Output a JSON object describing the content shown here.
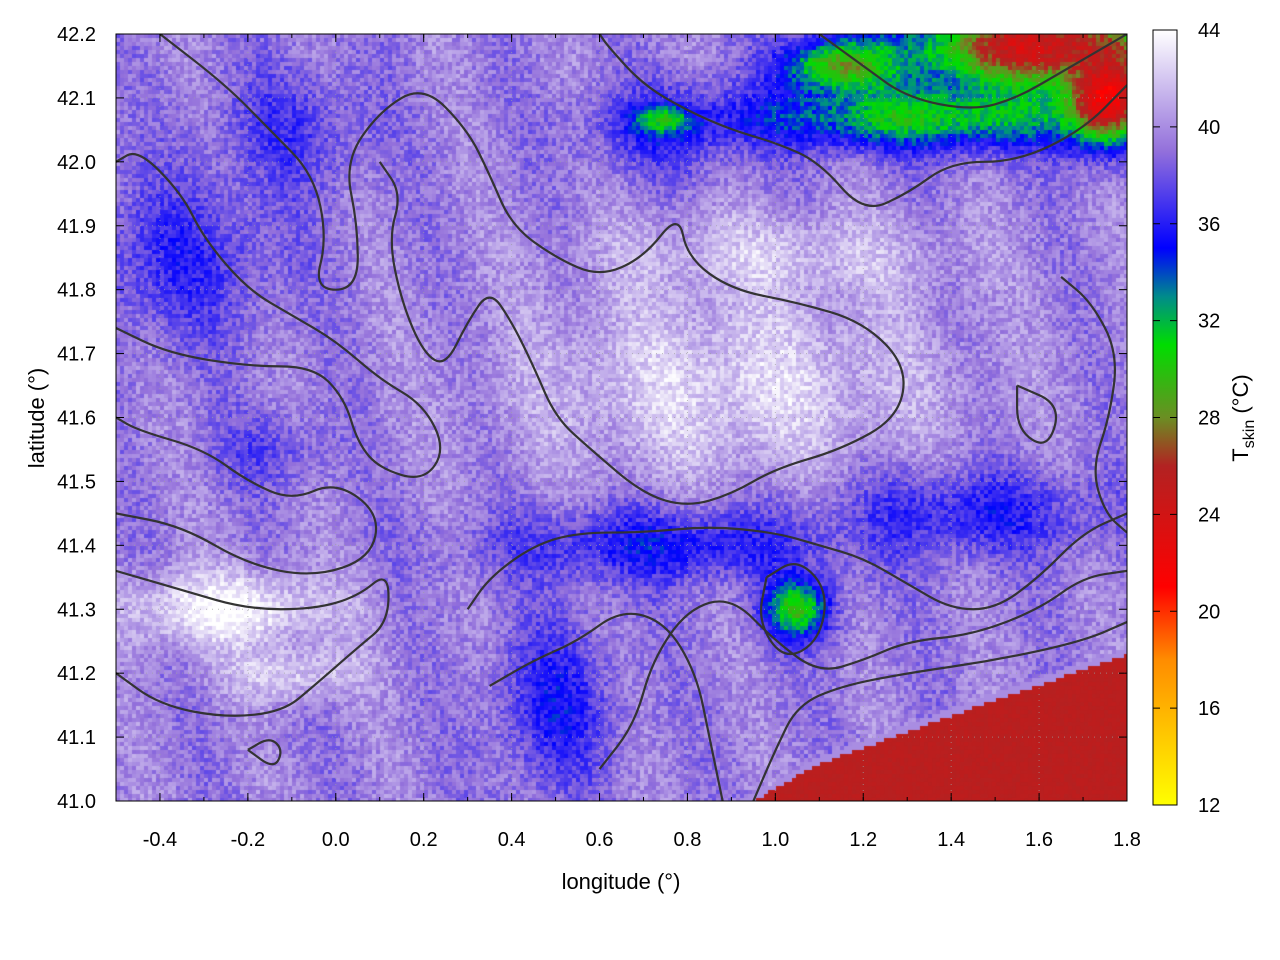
{
  "chart_data": {
    "type": "heatmap",
    "title": "",
    "xlabel": "longitude (°)",
    "ylabel": "latitude (°)",
    "colorbar": {
      "label_main": "T",
      "label_sub": "skin",
      "label_unit": " (°C)",
      "range": [
        12,
        44
      ],
      "ticks": [
        12,
        16,
        20,
        24,
        28,
        32,
        36,
        40,
        44
      ],
      "stops": [
        {
          "v": 12,
          "c": "#ffff00"
        },
        {
          "v": 18,
          "c": "#ff8c00"
        },
        {
          "v": 21,
          "c": "#ff0000"
        },
        {
          "v": 26,
          "c": "#b22222"
        },
        {
          "v": 28,
          "c": "#6b8e23"
        },
        {
          "v": 31,
          "c": "#00dd00"
        },
        {
          "v": 33,
          "c": "#008b8b"
        },
        {
          "v": 35,
          "c": "#0000ff"
        },
        {
          "v": 39,
          "c": "#9370db"
        },
        {
          "v": 44,
          "c": "#ffffff"
        }
      ]
    },
    "xlim": [
      -0.5,
      1.8
    ],
    "ylim": [
      41.0,
      42.2
    ],
    "x_ticks": [
      -0.4,
      -0.2,
      0.0,
      0.2,
      0.4,
      0.6,
      0.8,
      1.0,
      1.2,
      1.4,
      1.6,
      1.8
    ],
    "x_tick_labels": [
      "-0.4",
      "-0.2",
      "0.0",
      "0.2",
      "0.4",
      "0.6",
      "0.8",
      "1.0",
      "1.2",
      "1.4",
      "1.6",
      "1.8"
    ],
    "y_ticks": [
      41.0,
      41.1,
      41.2,
      41.3,
      41.4,
      41.5,
      41.6,
      41.7,
      41.8,
      41.9,
      42.0,
      42.1,
      42.2
    ],
    "y_tick_labels": [
      "41.0",
      "41.1",
      "41.2",
      "41.3",
      "41.4",
      "41.5",
      "41.6",
      "41.7",
      "41.8",
      "41.9",
      "42.0",
      "42.1",
      "42.2"
    ],
    "grid": true,
    "field_features": [
      {
        "name": "background",
        "type": "base",
        "value": 39.5
      },
      {
        "name": "western-blue-band",
        "type": "blob",
        "x": -0.35,
        "y": 41.85,
        "rx": 0.25,
        "ry": 0.15,
        "value": 36.5
      },
      {
        "name": "northwest-blue",
        "type": "blob",
        "x": -0.1,
        "y": 42.05,
        "rx": 0.2,
        "ry": 0.12,
        "value": 37.0
      },
      {
        "name": "west-blue-patch",
        "type": "blob",
        "x": -0.15,
        "y": 41.55,
        "rx": 0.15,
        "ry": 0.07,
        "value": 37.5
      },
      {
        "name": "central-hot-band",
        "type": "blob",
        "x": 0.9,
        "y": 41.65,
        "rx": 0.55,
        "ry": 0.18,
        "value": 42.5
      },
      {
        "name": "north-hot-strip",
        "type": "blob",
        "x": 1.0,
        "y": 41.85,
        "rx": 0.45,
        "ry": 0.08,
        "value": 42.0
      },
      {
        "name": "western-hot-lowland",
        "type": "blob",
        "x": -0.25,
        "y": 41.3,
        "rx": 0.28,
        "ry": 0.07,
        "value": 44.0
      },
      {
        "name": "west-hot-south",
        "type": "blob",
        "x": -0.1,
        "y": 41.2,
        "rx": 0.18,
        "ry": 0.05,
        "value": 42.5
      },
      {
        "name": "southern-blue-belt",
        "type": "blob",
        "x": 0.75,
        "y": 41.4,
        "rx": 0.45,
        "ry": 0.07,
        "value": 35.5
      },
      {
        "name": "south-blue-valley",
        "type": "blob",
        "x": 0.5,
        "y": 41.15,
        "rx": 0.15,
        "ry": 0.15,
        "value": 35.8
      },
      {
        "name": "eastern-blue-belt",
        "type": "blob",
        "x": 1.45,
        "y": 41.45,
        "rx": 0.35,
        "ry": 0.08,
        "value": 36.0
      },
      {
        "name": "north-central-blue",
        "type": "blob",
        "x": 0.75,
        "y": 42.05,
        "rx": 0.2,
        "ry": 0.08,
        "value": 36.5
      },
      {
        "name": "green-patch-south",
        "type": "blob",
        "x": 1.05,
        "y": 41.3,
        "rx": 0.09,
        "ry": 0.055,
        "value": 30.0
      },
      {
        "name": "green-patch-north",
        "type": "blob",
        "x": 0.75,
        "y": 42.065,
        "rx": 0.08,
        "ry": 0.025,
        "value": 30.5
      },
      {
        "name": "green-strip-northeast",
        "type": "blob",
        "x": 1.35,
        "y": 42.07,
        "rx": 0.5,
        "ry": 0.06,
        "value": 31.0
      },
      {
        "name": "red-northeast-corner",
        "type": "blob",
        "x": 1.6,
        "y": 42.18,
        "rx": 0.35,
        "ry": 0.08,
        "value": 24.0
      },
      {
        "name": "red-northeast-edge",
        "type": "blob",
        "x": 1.75,
        "y": 42.1,
        "rx": 0.1,
        "ry": 0.08,
        "value": 21.0
      },
      {
        "name": "green-patch-northeast-inner",
        "type": "blob",
        "x": 1.15,
        "y": 42.15,
        "rx": 0.15,
        "ry": 0.05,
        "value": 28.0
      },
      {
        "name": "sea-southeast",
        "type": "halfplane",
        "points_lonlat": [
          [
            0.92,
            41.0
          ],
          [
            1.1,
            41.07
          ],
          [
            1.3,
            41.12
          ],
          [
            1.5,
            41.17
          ],
          [
            1.8,
            41.24
          ]
        ],
        "value": 25.5
      }
    ],
    "contours": [
      [
        [
          -0.5,
          41.36
        ],
        [
          -0.35,
          41.33
        ],
        [
          -0.2,
          41.3
        ],
        [
          -0.05,
          41.3
        ],
        [
          0.05,
          41.32
        ],
        [
          0.12,
          41.36
        ],
        [
          0.12,
          41.28
        ],
        [
          0.05,
          41.24
        ],
        [
          -0.05,
          41.18
        ],
        [
          -0.12,
          41.14
        ],
        [
          -0.25,
          41.13
        ],
        [
          -0.4,
          41.15
        ],
        [
          -0.5,
          41.2
        ]
      ],
      [
        [
          -0.5,
          41.45
        ],
        [
          -0.35,
          41.43
        ],
        [
          -0.2,
          41.37
        ],
        [
          -0.05,
          41.35
        ],
        [
          0.08,
          41.38
        ],
        [
          0.1,
          41.45
        ],
        [
          0.0,
          41.5
        ],
        [
          -0.1,
          41.47
        ],
        [
          -0.2,
          41.5
        ],
        [
          -0.3,
          41.55
        ],
        [
          -0.45,
          41.58
        ],
        [
          -0.5,
          41.6
        ]
      ],
      [
        [
          -0.5,
          41.74
        ],
        [
          -0.38,
          41.7
        ],
        [
          -0.2,
          41.68
        ],
        [
          -0.05,
          41.68
        ],
        [
          0.02,
          41.63
        ],
        [
          0.05,
          41.56
        ],
        [
          0.1,
          41.52
        ],
        [
          0.2,
          41.5
        ],
        [
          0.25,
          41.55
        ],
        [
          0.2,
          41.62
        ],
        [
          0.1,
          41.66
        ],
        [
          0.0,
          41.72
        ],
        [
          -0.1,
          41.76
        ],
        [
          -0.2,
          41.8
        ],
        [
          -0.3,
          41.88
        ],
        [
          -0.35,
          41.95
        ],
        [
          -0.45,
          42.02
        ],
        [
          -0.5,
          42.0
        ]
      ],
      [
        [
          -0.4,
          42.2
        ],
        [
          -0.25,
          42.12
        ],
        [
          -0.15,
          42.05
        ],
        [
          -0.05,
          41.98
        ],
        [
          -0.02,
          41.88
        ],
        [
          -0.05,
          41.8
        ],
        [
          0.05,
          41.8
        ],
        [
          0.05,
          41.9
        ],
        [
          0.02,
          42.0
        ],
        [
          0.1,
          42.08
        ],
        [
          0.2,
          42.12
        ],
        [
          0.3,
          42.05
        ],
        [
          0.35,
          41.98
        ],
        [
          0.4,
          41.9
        ],
        [
          0.5,
          41.85
        ],
        [
          0.6,
          41.82
        ],
        [
          0.7,
          41.85
        ],
        [
          0.78,
          41.92
        ],
        [
          0.8,
          41.85
        ],
        [
          0.9,
          41.8
        ],
        [
          1.05,
          41.78
        ],
        [
          1.2,
          41.75
        ],
        [
          1.3,
          41.68
        ],
        [
          1.28,
          41.6
        ],
        [
          1.15,
          41.55
        ],
        [
          1.0,
          41.52
        ],
        [
          0.9,
          41.48
        ],
        [
          0.8,
          41.46
        ],
        [
          0.7,
          41.48
        ],
        [
          0.58,
          41.55
        ],
        [
          0.5,
          41.6
        ],
        [
          0.45,
          41.68
        ],
        [
          0.4,
          41.75
        ],
        [
          0.35,
          41.8
        ],
        [
          0.3,
          41.75
        ],
        [
          0.25,
          41.68
        ],
        [
          0.2,
          41.7
        ],
        [
          0.15,
          41.78
        ],
        [
          0.12,
          41.88
        ],
        [
          0.15,
          41.95
        ],
        [
          0.1,
          42.0
        ]
      ],
      [
        [
          0.3,
          41.3
        ],
        [
          0.35,
          41.35
        ],
        [
          0.45,
          41.4
        ],
        [
          0.55,
          41.42
        ],
        [
          0.7,
          41.42
        ],
        [
          0.85,
          41.43
        ],
        [
          1.0,
          41.42
        ],
        [
          1.1,
          41.4
        ],
        [
          1.2,
          41.38
        ],
        [
          1.3,
          41.34
        ],
        [
          1.4,
          41.3
        ],
        [
          1.5,
          41.3
        ],
        [
          1.6,
          41.35
        ],
        [
          1.7,
          41.42
        ],
        [
          1.8,
          41.45
        ]
      ],
      [
        [
          0.35,
          41.18
        ],
        [
          0.45,
          41.22
        ],
        [
          0.55,
          41.25
        ],
        [
          0.65,
          41.3
        ],
        [
          0.75,
          41.28
        ],
        [
          0.82,
          41.2
        ],
        [
          0.85,
          41.1
        ],
        [
          0.88,
          41.0
        ]
      ],
      [
        [
          0.6,
          41.05
        ],
        [
          0.68,
          41.12
        ],
        [
          0.72,
          41.22
        ],
        [
          0.8,
          41.3
        ],
        [
          0.9,
          41.32
        ],
        [
          1.0,
          41.25
        ],
        [
          1.1,
          41.2
        ],
        [
          1.2,
          41.22
        ],
        [
          1.3,
          41.25
        ],
        [
          1.45,
          41.26
        ],
        [
          1.6,
          41.3
        ],
        [
          1.7,
          41.35
        ],
        [
          1.8,
          41.36
        ]
      ],
      [
        [
          0.95,
          41.0
        ],
        [
          1.0,
          41.08
        ],
        [
          1.05,
          41.15
        ],
        [
          1.15,
          41.18
        ],
        [
          1.3,
          41.2
        ],
        [
          1.5,
          41.22
        ],
        [
          1.7,
          41.25
        ],
        [
          1.8,
          41.28
        ]
      ],
      [
        [
          1.8,
          42.12
        ],
        [
          1.7,
          42.05
        ],
        [
          1.55,
          42.0
        ],
        [
          1.4,
          42.0
        ],
        [
          1.3,
          41.95
        ],
        [
          1.2,
          41.92
        ],
        [
          1.1,
          42.0
        ],
        [
          1.0,
          42.03
        ],
        [
          0.9,
          42.05
        ],
        [
          0.8,
          42.08
        ],
        [
          0.7,
          42.12
        ],
        [
          0.62,
          42.18
        ],
        [
          0.6,
          42.2
        ]
      ],
      [
        [
          1.1,
          42.2
        ],
        [
          1.2,
          42.15
        ],
        [
          1.3,
          42.1
        ],
        [
          1.45,
          42.08
        ],
        [
          1.55,
          42.1
        ],
        [
          1.65,
          42.14
        ],
        [
          1.8,
          42.2
        ]
      ],
      [
        [
          0.98,
          41.35
        ],
        [
          1.05,
          41.38
        ],
        [
          1.12,
          41.33
        ],
        [
          1.1,
          41.25
        ],
        [
          1.02,
          41.22
        ],
        [
          0.96,
          41.28
        ],
        [
          0.98,
          41.35
        ]
      ],
      [
        [
          -0.2,
          41.08
        ],
        [
          -0.15,
          41.1
        ],
        [
          -0.12,
          41.08
        ],
        [
          -0.14,
          41.05
        ],
        [
          -0.2,
          41.08
        ]
      ],
      [
        [
          1.55,
          41.65
        ],
        [
          1.65,
          41.62
        ],
        [
          1.62,
          41.55
        ],
        [
          1.55,
          41.58
        ],
        [
          1.55,
          41.65
        ]
      ],
      [
        [
          1.65,
          41.82
        ],
        [
          1.72,
          41.78
        ],
        [
          1.78,
          41.7
        ],
        [
          1.76,
          41.6
        ],
        [
          1.72,
          41.52
        ],
        [
          1.75,
          41.45
        ],
        [
          1.8,
          41.42
        ]
      ]
    ]
  }
}
